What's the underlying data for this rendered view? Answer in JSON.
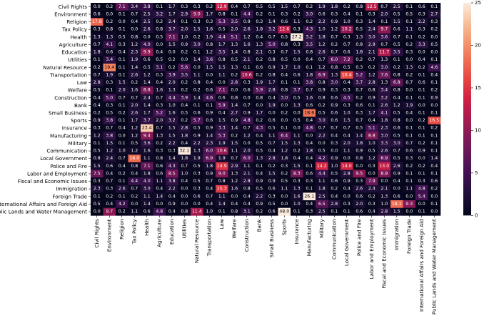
{
  "chart_data": {
    "type": "heatmap",
    "title": "",
    "xlabel": "",
    "ylabel": "",
    "categories": [
      "Civil Rights",
      "Environment",
      "Religion",
      "Tax Policy",
      "Health",
      "Agriculture",
      "Education",
      "Utilities",
      "Natural Resource",
      "Transportation",
      "Law",
      "Welfare",
      "Construction",
      "Bank",
      "Small Business",
      "Sports",
      "Insurance",
      "Manufacturing",
      "Military",
      "Communication",
      "Local Government",
      "Police and Fire",
      "Labor and Employment",
      "Fiscal and Economic Issues",
      "Immigration",
      "Foreign Trade",
      "International Affairs and Foreign Aid",
      "Public Lands and Water Management"
    ],
    "values": [
      [
        0.0,
        0.2,
        7.1,
        3.4,
        3.8,
        0.1,
        1.7,
        0.3,
        0.3,
        0.2,
        12.9,
        0.4,
        0.7,
        0.5,
        0.5,
        1.5,
        0.7,
        0.2,
        1.9,
        1.8,
        0.2,
        0.8,
        12.5,
        0.7,
        2.5,
        0.1,
        0.6,
        0.1
      ],
      [
        0.6,
        0.0,
        0.1,
        0.7,
        2.5,
        3.2,
        1.7,
        2.9,
        9.0,
        1.7,
        0.8,
        0.1,
        4.4,
        0.2,
        0.1,
        0.3,
        0.2,
        3.0,
        0.6,
        0.3,
        0.4,
        0.1,
        0.3,
        2.0,
        0.5,
        0.5,
        0.3,
        2.7
      ],
      [
        17.8,
        0.2,
        0.0,
        0.4,
        2.5,
        0.2,
        2.4,
        0.1,
        0.3,
        0.3,
        5.3,
        3.5,
        0.9,
        0.3,
        1.4,
        0.6,
        1.1,
        0.2,
        2.2,
        0.9,
        1.0,
        0.3,
        1.4,
        0.1,
        1.5,
        0.1,
        2.2,
        0.3
      ],
      [
        0.3,
        0.8,
        0.1,
        0.0,
        2.6,
        0.8,
        3.7,
        2.0,
        1.5,
        1.6,
        0.5,
        2.0,
        2.6,
        1.8,
        3.2,
        12.6,
        0.3,
        4.3,
        1.0,
        1.2,
        10.2,
        0.5,
        2.4,
        9.7,
        0.6,
        1.1,
        0.3,
        0.2
      ],
      [
        1.3,
        1.3,
        0.5,
        0.8,
        0.0,
        0.5,
        7.1,
        1.0,
        0.2,
        1.9,
        4.4,
        5.1,
        1.2,
        0.4,
        0.7,
        0.5,
        27.2,
        3.2,
        1.8,
        0.7,
        0.3,
        1.3,
        3.0,
        3.6,
        0.7,
        0.1,
        0.2,
        0.0
      ],
      [
        0.7,
        4.1,
        0.3,
        1.2,
        4.0,
        0.0,
        1.5,
        0.9,
        3.0,
        0.8,
        1.7,
        1.3,
        1.6,
        1.3,
        5.0,
        0.8,
        0.3,
        3.5,
        1.2,
        0.2,
        0.7,
        0.8,
        2.9,
        0.7,
        0.5,
        0.2,
        3.3,
        0.5
      ],
      [
        1.8,
        0.6,
        0.4,
        2.3,
        9.9,
        0.4,
        0.0,
        0.2,
        0.1,
        1.2,
        3.5,
        1.4,
        0.8,
        2.1,
        0.3,
        0.7,
        1.5,
        0.8,
        2.6,
        0.7,
        0.6,
        1.8,
        2.1,
        11.7,
        3.5,
        0.3,
        0.0,
        0.0
      ],
      [
        0.1,
        3.4,
        0.1,
        1.9,
        0.6,
        0.5,
        0.2,
        0.0,
        1.4,
        3.6,
        0.8,
        0.5,
        2.1,
        0.2,
        0.8,
        0.5,
        0.0,
        0.4,
        0.7,
        6.0,
        7.2,
        0.2,
        0.7,
        1.3,
        0.1,
        0.0,
        0.4,
        0.1
      ],
      [
        0.2,
        19.4,
        0.1,
        1.4,
        0.5,
        3.1,
        0.2,
        5.6,
        0.0,
        1.5,
        1.5,
        1.3,
        0.1,
        0.6,
        0.9,
        1.7,
        1.0,
        0.1,
        1.2,
        0.8,
        0.5,
        0.3,
        0.2,
        3.0,
        0.2,
        1.3,
        0.2,
        4.6
      ],
      [
        0.7,
        1.9,
        0.1,
        2.6,
        1.2,
        0.3,
        3.9,
        3.5,
        1.1,
        0.0,
        1.1,
        0.2,
        10.6,
        0.2,
        0.8,
        0.4,
        0.6,
        1.8,
        6.9,
        1.3,
        16.4,
        5.2,
        1.2,
        7.6,
        0.8,
        0.2,
        0.1,
        0.4
      ],
      [
        2.8,
        0.3,
        1.5,
        0.2,
        1.4,
        0.4,
        2.0,
        0.2,
        0.8,
        0.4,
        0.0,
        2.8,
        0.3,
        1.9,
        1.7,
        0.1,
        0.1,
        3.8,
        0.8,
        3.0,
        0.4,
        3.7,
        2.8,
        1.3,
        6.8,
        0.7,
        0.6,
        0.1
      ],
      [
        0.5,
        0.1,
        2.0,
        1.6,
        8.8,
        1.6,
        1.3,
        0.2,
        0.2,
        0.6,
        7.1,
        0.0,
        0.6,
        5.9,
        2.8,
        0.8,
        3.7,
        0.7,
        0.9,
        0.3,
        0.3,
        0.7,
        0.8,
        3.4,
        0.8,
        0.0,
        0.1,
        0.2
      ],
      [
        0.4,
        5.0,
        0.7,
        0.7,
        2.4,
        0.7,
        4.4,
        3.9,
        1.4,
        4.6,
        0.6,
        0.8,
        0.0,
        0.8,
        0.4,
        3.0,
        0.5,
        1.6,
        0.8,
        0.6,
        4.5,
        0.2,
        0.9,
        3.2,
        0.4,
        0.1,
        0.1,
        0.9
      ],
      [
        0.4,
        0.3,
        0.1,
        2.0,
        1.4,
        0.3,
        1.0,
        0.4,
        0.1,
        0.1,
        5.9,
        1.4,
        0.7,
        0.0,
        1.9,
        0.0,
        1.3,
        0.6,
        0.2,
        0.9,
        0.3,
        0.6,
        0.1,
        2.6,
        1.2,
        1.9,
        0.0,
        0.0
      ],
      [
        0.2,
        0.5,
        0.2,
        2.6,
        1.7,
        5.2,
        1.6,
        0.5,
        0.6,
        0.9,
        0.4,
        2.7,
        0.9,
        1.7,
        0.0,
        0.2,
        0.0,
        18.6,
        0.5,
        0.6,
        1.0,
        0.3,
        1.7,
        4.1,
        0.5,
        0.4,
        0.1,
        0.1
      ],
      [
        0.9,
        3.8,
        0.1,
        1.7,
        3.7,
        2.0,
        3.2,
        0.2,
        5.7,
        0.6,
        1.5,
        0.9,
        4.8,
        0.2,
        0.6,
        0.0,
        0.5,
        0.4,
        3.0,
        0.6,
        1.5,
        0.7,
        0.4,
        1.8,
        0.8,
        0.0,
        0.2,
        16.5
      ],
      [
        0.3,
        0.7,
        0.4,
        1.2,
        23.4,
        0.7,
        1.5,
        2.8,
        0.5,
        0.9,
        3.3,
        1.4,
        0.7,
        4.3,
        0.5,
        0.1,
        0.0,
        4.8,
        0.7,
        0.7,
        0.7,
        0.5,
        5.1,
        2.3,
        0.6,
        0.1,
        0.1,
        0.2
      ],
      [
        1.2,
        3.8,
        0.0,
        1.2,
        9.4,
        1.3,
        1.5,
        1.8,
        0.9,
        1.4,
        5.3,
        0.2,
        1.2,
        0.4,
        1.1,
        6.4,
        1.1,
        0.0,
        2.2,
        0.4,
        0.4,
        1.4,
        8.8,
        3.0,
        0.5,
        0.1,
        0.1,
        0.1
      ],
      [
        0.1,
        1.5,
        0.1,
        0.5,
        3.6,
        0.2,
        2.2,
        0.4,
        2.2,
        2.3,
        1.9,
        1.5,
        0.0,
        0.5,
        0.7,
        1.5,
        1.3,
        0.4,
        0.0,
        0.3,
        2.0,
        1.8,
        1.0,
        3.3,
        3.0,
        0.7,
        0.2,
        0.1
      ],
      [
        0.5,
        1.2,
        1.0,
        1.2,
        1.6,
        0.3,
        0.3,
        32.1,
        1.3,
        6.0,
        10.6,
        1.1,
        2.0,
        0.5,
        0.4,
        1.2,
        0.2,
        1.8,
        0.5,
        0.0,
        1.1,
        0.9,
        0.5,
        2.6,
        0.7,
        0.6,
        0.9,
        0.1
      ],
      [
        0.8,
        2.4,
        0.7,
        18.0,
        1.1,
        0.8,
        1.4,
        1.8,
        1.9,
        6.9,
        1.9,
        0.7,
        6.0,
        1.3,
        2.8,
        1.8,
        0.4,
        0.4,
        4.2,
        0.9,
        0.0,
        0.8,
        1.2,
        6.9,
        0.5,
        0.3,
        0.0,
        1.4
      ],
      [
        1.5,
        0.6,
        0.4,
        0.8,
        7.1,
        0.6,
        4.3,
        0.7,
        0.5,
        1.8,
        14.9,
        2.9,
        1.1,
        0.1,
        0.2,
        0.3,
        1.5,
        0.1,
        14.2,
        1.0,
        14.0,
        0.0,
        0.3,
        13.0,
        2.6,
        0.2,
        0.2,
        0.4
      ],
      [
        7.5,
        0.4,
        0.2,
        0.4,
        1.8,
        0.6,
        8.5,
        1.0,
        0.3,
        0.9,
        9.0,
        1.3,
        2.1,
        0.4,
        1.5,
        0.2,
        8.3,
        0.6,
        4.4,
        0.5,
        2.8,
        9.5,
        0.0,
        8.9,
        0.9,
        0.1,
        0.1,
        0.1
      ],
      [
        0.3,
        0.7,
        0.1,
        4.4,
        4.0,
        1.1,
        3.8,
        0.4,
        0.5,
        0.7,
        0.8,
        1.2,
        2.8,
        0.9,
        0.9,
        0.5,
        0.3,
        0.3,
        1.1,
        0.6,
        0.9,
        0.3,
        7.9,
        0.0,
        0.4,
        0.1,
        0.3,
        0.6
      ],
      [
        2.3,
        0.3,
        2.6,
        0.7,
        3.0,
        0.4,
        2.2,
        0.0,
        0.3,
        0.4,
        15.3,
        1.6,
        0.8,
        0.5,
        0.6,
        1.1,
        1.3,
        0.1,
        1.8,
        0.2,
        0.4,
        2.6,
        2.4,
        2.1,
        0.0,
        1.1,
        4.8,
        0.2
      ],
      [
        0.1,
        0.2,
        0.1,
        0.2,
        1.1,
        1.4,
        0.4,
        0.0,
        0.6,
        0.7,
        1.1,
        0.0,
        0.4,
        2.2,
        0.3,
        0.0,
        1.6,
        26.1,
        2.5,
        0.4,
        0.0,
        0.6,
        0.2,
        1.3,
        0.6,
        0.0,
        5.4,
        0.0
      ],
      [
        0.5,
        0.4,
        4.2,
        0.0,
        1.4,
        0.0,
        0.9,
        0.0,
        0.0,
        0.4,
        1.4,
        0.4,
        0.4,
        0.9,
        0.5,
        0.0,
        1.0,
        0.4,
        6.5,
        2.8,
        0.3,
        2.0,
        0.3,
        1.0,
        18.1,
        9.3,
        0.0,
        0.1
      ],
      [
        0.0,
        9.7,
        0.2,
        1.1,
        0.6,
        4.8,
        0.4,
        0.8,
        11.4,
        1.0,
        0.1,
        0.8,
        3.1,
        0.2,
        0.6,
        48.0,
        0.1,
        0.3,
        2.5,
        0.1,
        0.1,
        0.6,
        0.4,
        2.8,
        1.5,
        0.0,
        0.1,
        0.0
      ]
    ],
    "colorbar": {
      "min": 0,
      "max": 25,
      "ticks": [
        0,
        5,
        10,
        15,
        20,
        25
      ]
    },
    "colormap": "rocket"
  }
}
